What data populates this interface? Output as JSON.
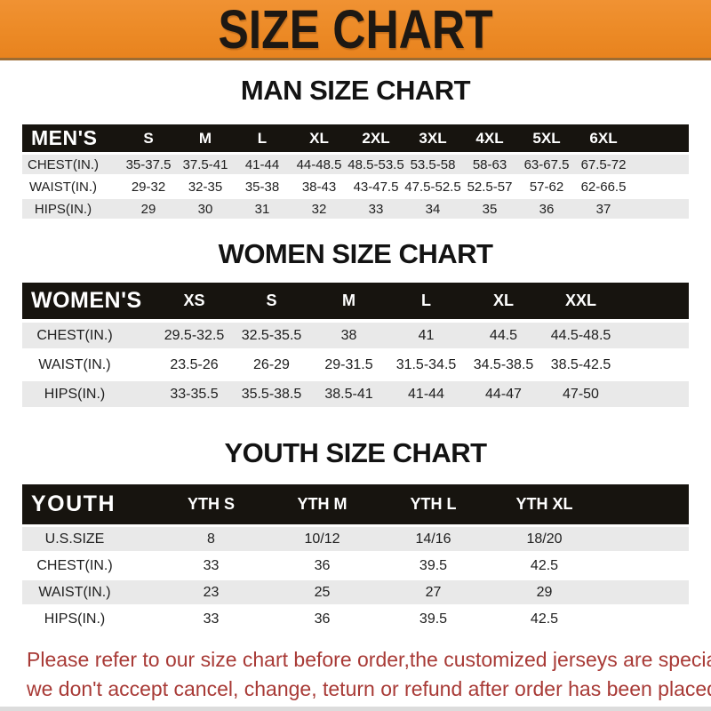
{
  "banner": {
    "title": "SIZE CHART",
    "bg_color": "#ec8a26",
    "text_color": "#1d1813"
  },
  "sections": {
    "men": {
      "title": "MAN SIZE CHART",
      "header_label": "MEN'S",
      "sizes": [
        "S",
        "M",
        "L",
        "XL",
        "2XL",
        "3XL",
        "4XL",
        "5XL",
        "6XL"
      ],
      "rows": [
        {
          "label": "CHEST(IN.)",
          "values": [
            "35-37.5",
            "37.5-41",
            "41-44",
            "44-48.5",
            "48.5-53.5",
            "53.5-58",
            "58-63",
            "63-67.5",
            "67.5-72"
          ]
        },
        {
          "label": "WAIST(IN.)",
          "values": [
            "29-32",
            "32-35",
            "35-38",
            "38-43",
            "43-47.5",
            "47.5-52.5",
            "52.5-57",
            "57-62",
            "62-66.5"
          ]
        },
        {
          "label": "HIPS(IN.)",
          "values": [
            "29",
            "30",
            "31",
            "32",
            "33",
            "34",
            "35",
            "36",
            "37"
          ]
        }
      ]
    },
    "women": {
      "title": "WOMEN SIZE CHART",
      "header_label": "WOMEN'S",
      "sizes": [
        "XS",
        "S",
        "M",
        "L",
        "XL",
        "XXL"
      ],
      "rows": [
        {
          "label": "CHEST(IN.)",
          "values": [
            "29.5-32.5",
            "32.5-35.5",
            "38",
            "41",
            "44.5",
            "44.5-48.5"
          ]
        },
        {
          "label": "WAIST(IN.)",
          "values": [
            "23.5-26",
            "26-29",
            "29-31.5",
            "31.5-34.5",
            "34.5-38.5",
            "38.5-42.5"
          ]
        },
        {
          "label": "HIPS(IN.)",
          "values": [
            "33-35.5",
            "35.5-38.5",
            "38.5-41",
            "41-44",
            "44-47",
            "47-50"
          ]
        }
      ]
    },
    "youth": {
      "title": "YOUTH SIZE CHART",
      "header_label": "YOUTH",
      "sizes": [
        "YTH S",
        "YTH M",
        "YTH L",
        "YTH XL"
      ],
      "rows": [
        {
          "label": "U.S.SIZE",
          "values": [
            "8",
            "10/12",
            "14/16",
            "18/20"
          ]
        },
        {
          "label": "CHEST(IN.)",
          "values": [
            "33",
            "36",
            "39.5",
            "42.5"
          ]
        },
        {
          "label": "WAIST(IN.)",
          "values": [
            "23",
            "25",
            "27",
            "29"
          ]
        },
        {
          "label": "HIPS(IN.)",
          "values": [
            "33",
            "36",
            "39.5",
            "42.5"
          ]
        }
      ]
    }
  },
  "footer": {
    "line1": "Please refer to our size chart before order,the customized jerseys are special products,",
    "line2": "we don't accept cancel, change, teturn or refund after order has been placed!",
    "text_color": "#a83a36"
  },
  "table_colors": {
    "header_band": "#17140f",
    "stripe_row": "#e9e9e9"
  }
}
